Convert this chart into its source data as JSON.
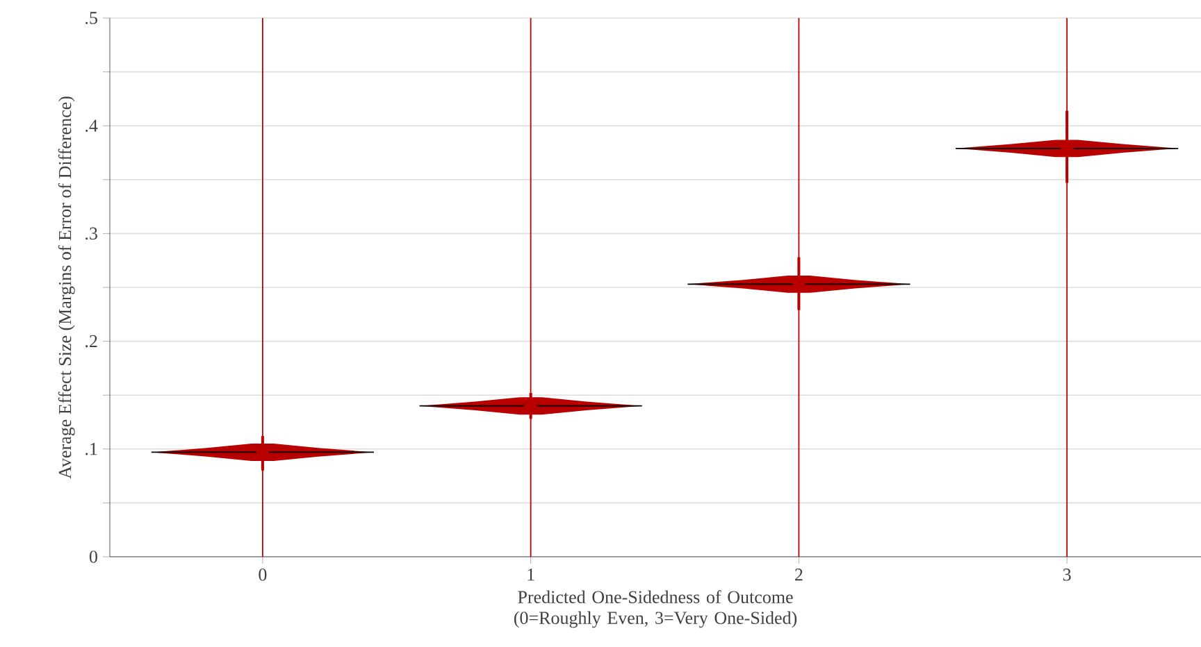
{
  "chart_data": {
    "type": "scatter",
    "xlabel": "Predicted One-Sidedness of Outcome (0=Roughly Even, 3=Very One-Sided)",
    "ylabel": "Average Effect Size (Margins of Error of Difference)",
    "x": [
      0,
      1,
      2,
      3
    ],
    "values": [
      0.097,
      0.14,
      0.253,
      0.379
    ],
    "errors": [
      [
        0.08,
        0.112
      ],
      [
        0.128,
        0.152
      ],
      [
        0.229,
        0.278
      ],
      [
        0.347,
        0.414
      ]
    ],
    "color": "#b80000",
    "marker": "diamond",
    "xlim": [
      -0.57,
      3.5
    ],
    "xticks": [
      0,
      1,
      2,
      3
    ],
    "ylim": [
      0,
      0.5
    ],
    "yticks": [
      0,
      {
        "value": 0.05,
        "label": null
      },
      {
        "value": 0.1,
        "label": ".1"
      },
      {
        "value": 0.15,
        "label": null
      },
      {
        "value": 0.2,
        "label": ".2"
      },
      {
        "value": 0.25,
        "label": null
      },
      {
        "value": 0.3,
        "label": ".3"
      },
      {
        "value": 0.35,
        "label": null
      },
      {
        "value": 0.4,
        "label": ".4"
      },
      {
        "value": 0.45,
        "label": null
      },
      {
        "value": 0.5,
        "label": ".5"
      }
    ],
    "grid": "y",
    "ref_lines": [
      {
        "axis": "x",
        "value": 0,
        "color": "#c00000"
      },
      {
        "axis": "x",
        "value": 1,
        "color": "#c00000"
      },
      {
        "axis": "x",
        "value": 2,
        "color": "#c00000"
      },
      {
        "axis": "x",
        "value": 3,
        "color": "#c00000"
      }
    ]
  }
}
